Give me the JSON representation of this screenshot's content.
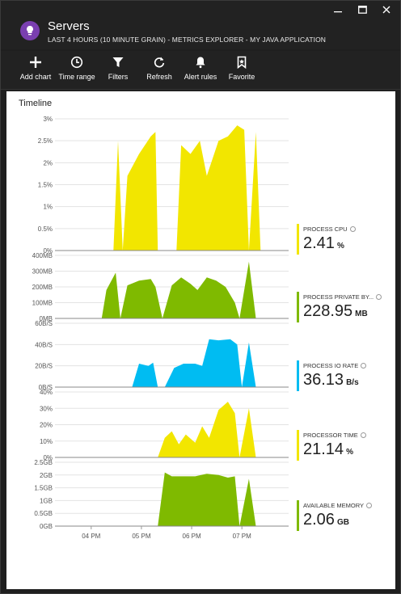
{
  "window": {
    "title": "Servers",
    "subtitle": "LAST 4 HOURS (10 MINUTE GRAIN) - METRICS EXPLORER - MY JAVA APPLICATION",
    "icon": "lightbulb-icon",
    "controls": [
      "minimize-icon",
      "maximize-icon",
      "close-icon"
    ]
  },
  "toolbar": {
    "add_chart": "Add chart",
    "time_range": "Time range",
    "filters": "Filters",
    "refresh": "Refresh",
    "alert_rules": "Alert rules",
    "favorite": "Favorite"
  },
  "main": {
    "timeline_title": "Timeline"
  },
  "colors": {
    "yellow": "#f2e600",
    "green": "#7fba00",
    "blue": "#00bcf2"
  },
  "chart_data": [
    {
      "type": "area",
      "name": "PROCESS CPU",
      "value": "2.41",
      "unit": "%",
      "color": "#f2e600",
      "yticks": [
        "0%",
        "0.5%",
        "1%",
        "1.5%",
        "2%",
        "2.5%",
        "3%"
      ],
      "ylim": [
        0,
        3
      ],
      "points": [
        [
          0.25,
          0
        ],
        [
          0.27,
          2.5
        ],
        [
          0.29,
          0
        ],
        [
          0.31,
          1.7
        ],
        [
          0.36,
          2.2
        ],
        [
          0.41,
          2.6
        ],
        [
          0.43,
          2.7
        ],
        [
          0.44,
          0
        ],
        [
          0.52,
          0
        ],
        [
          0.54,
          2.4
        ],
        [
          0.58,
          2.2
        ],
        [
          0.62,
          2.5
        ],
        [
          0.65,
          1.7
        ],
        [
          0.7,
          2.5
        ],
        [
          0.74,
          2.6
        ],
        [
          0.78,
          2.85
        ],
        [
          0.81,
          2.75
        ],
        [
          0.83,
          0
        ],
        [
          0.86,
          2.7
        ],
        [
          0.88,
          0
        ]
      ]
    },
    {
      "type": "area",
      "name": "PROCESS PRIVATE BY...",
      "value": "228.95",
      "unit": "MB",
      "color": "#7fba00",
      "yticks": [
        "0MB",
        "100MB",
        "200MB",
        "300MB",
        "400MB"
      ],
      "ylim": [
        0,
        400
      ],
      "points": [
        [
          0.2,
          0
        ],
        [
          0.22,
          180
        ],
        [
          0.26,
          290
        ],
        [
          0.28,
          0
        ],
        [
          0.31,
          210
        ],
        [
          0.36,
          240
        ],
        [
          0.41,
          250
        ],
        [
          0.43,
          200
        ],
        [
          0.46,
          0
        ],
        [
          0.5,
          210
        ],
        [
          0.54,
          260
        ],
        [
          0.58,
          220
        ],
        [
          0.61,
          180
        ],
        [
          0.65,
          260
        ],
        [
          0.69,
          240
        ],
        [
          0.73,
          200
        ],
        [
          0.77,
          100
        ],
        [
          0.79,
          0
        ],
        [
          0.83,
          360
        ],
        [
          0.86,
          0
        ]
      ]
    },
    {
      "type": "area",
      "name": "PROCESS IO RATE",
      "value": "36.13",
      "unit": "B/s",
      "color": "#00bcf2",
      "yticks": [
        "0B/S",
        "20B/S",
        "40B/S",
        "60B/S"
      ],
      "ylim": [
        0,
        60
      ],
      "points": [
        [
          0.33,
          0
        ],
        [
          0.36,
          22
        ],
        [
          0.4,
          20
        ],
        [
          0.42,
          23
        ],
        [
          0.44,
          0
        ],
        [
          0.47,
          0
        ],
        [
          0.51,
          18
        ],
        [
          0.55,
          22
        ],
        [
          0.6,
          22
        ],
        [
          0.63,
          20
        ],
        [
          0.66,
          45
        ],
        [
          0.7,
          44
        ],
        [
          0.75,
          45
        ],
        [
          0.78,
          40
        ],
        [
          0.8,
          0
        ],
        [
          0.83,
          42
        ],
        [
          0.86,
          0
        ]
      ]
    },
    {
      "type": "area",
      "name": "PROCESSOR TIME",
      "value": "21.14",
      "unit": "%",
      "color": "#f2e600",
      "yticks": [
        "0%",
        "10%",
        "20%",
        "30%",
        "40%"
      ],
      "ylim": [
        0,
        40
      ],
      "points": [
        [
          0.44,
          0
        ],
        [
          0.47,
          12
        ],
        [
          0.5,
          16
        ],
        [
          0.53,
          8
        ],
        [
          0.56,
          14
        ],
        [
          0.6,
          9
        ],
        [
          0.63,
          19
        ],
        [
          0.66,
          12
        ],
        [
          0.7,
          29
        ],
        [
          0.74,
          34
        ],
        [
          0.77,
          27
        ],
        [
          0.79,
          0
        ],
        [
          0.83,
          30
        ],
        [
          0.86,
          0
        ]
      ]
    },
    {
      "type": "area",
      "name": "AVAILABLE MEMORY",
      "value": "2.06",
      "unit": "GB",
      "color": "#7fba00",
      "yticks": [
        "0GB",
        "0.5GB",
        "1GB",
        "1.5GB",
        "2GB",
        "2.5GB"
      ],
      "ylim": [
        0,
        2.5
      ],
      "points": [
        [
          0.44,
          0
        ],
        [
          0.47,
          2.1
        ],
        [
          0.5,
          1.95
        ],
        [
          0.55,
          1.95
        ],
        [
          0.6,
          1.95
        ],
        [
          0.65,
          2.05
        ],
        [
          0.7,
          2.0
        ],
        [
          0.74,
          1.9
        ],
        [
          0.77,
          1.95
        ],
        [
          0.79,
          0
        ],
        [
          0.83,
          1.85
        ],
        [
          0.86,
          0
        ]
      ]
    }
  ],
  "xaxis": {
    "ticks": [
      {
        "label": "04 PM",
        "pos": 0.155
      },
      {
        "label": "05 PM",
        "pos": 0.37
      },
      {
        "label": "06 PM",
        "pos": 0.585
      },
      {
        "label": "07 PM",
        "pos": 0.8
      }
    ]
  }
}
